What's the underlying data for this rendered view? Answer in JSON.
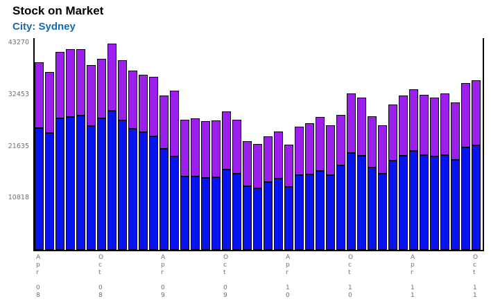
{
  "header": {
    "title": "Stock on Market",
    "subtitle": "City: Sydney"
  },
  "colors": {
    "title_text": "#000000",
    "subtitle_text": "#1569b5",
    "tick_text": "#707070",
    "axis_line": "#000000",
    "bar_blue": "#0814f0",
    "bar_purple": "#9d1fee",
    "background": "#ffffff"
  },
  "chart_data": {
    "type": "bar",
    "stacked": true,
    "title": "Stock on Market",
    "subtitle": "City: Sydney",
    "xlabel": "",
    "ylabel": "",
    "ylim": [
      0,
      43270
    ],
    "grid": false,
    "legend": "none",
    "yticks": [
      {
        "label": "43270",
        "value": 43270
      },
      {
        "label": "32453",
        "value": 32452.5
      },
      {
        "label": "21635",
        "value": 21635
      },
      {
        "label": "10818",
        "value": 10817.5
      }
    ],
    "x_tick_step": 6,
    "x_tick_labels_visible": [
      "Apr 08",
      "Oct 08",
      "Apr 09",
      "Oct 09",
      "Apr 10",
      "Oct 10",
      "Apr 11",
      "Oct 11"
    ],
    "categories": [
      "Apr 08",
      "May 08",
      "Jun 08",
      "Jul 08",
      "Aug 08",
      "Sep 08",
      "Oct 08",
      "Nov 08",
      "Dec 08",
      "Jan 09",
      "Feb 09",
      "Mar 09",
      "Apr 09",
      "May 09",
      "Jun 09",
      "Jul 09",
      "Aug 09",
      "Sep 09",
      "Oct 09",
      "Nov 09",
      "Dec 09",
      "Jan 10",
      "Feb 10",
      "Mar 10",
      "Apr 10",
      "May 10",
      "Jun 10",
      "Jul 10",
      "Aug 10",
      "Sep 10",
      "Oct 10",
      "Nov 10",
      "Dec 10",
      "Jan 11",
      "Feb 11",
      "Mar 11",
      "Apr 11",
      "May 11",
      "Jun 11",
      "Jul 11",
      "Aug 11",
      "Sep 11",
      "Oct 11"
    ],
    "series": [
      {
        "name": "blue-lower-segment",
        "color": "#0814f0",
        "values": [
          25450,
          24450,
          27450,
          27750,
          28050,
          25900,
          27450,
          29050,
          27000,
          25300,
          24600,
          23700,
          21150,
          19550,
          15400,
          15400,
          15100,
          15250,
          16800,
          15950,
          13350,
          12950,
          14250,
          14950,
          13100,
          15650,
          15800,
          16550,
          15650,
          17700,
          20250,
          19700,
          17250,
          15950,
          18700,
          19700,
          20700,
          19850,
          19550,
          19850,
          18850,
          21400,
          21850
        ]
      },
      {
        "name": "purple-upper-segment",
        "color": "#9d1fee",
        "values": [
          13800,
          12800,
          13950,
          14250,
          13950,
          12750,
          12500,
          14050,
          12650,
          12100,
          12050,
          12400,
          11200,
          13800,
          11900,
          12200,
          11800,
          11900,
          12100,
          11350,
          9350,
          9200,
          9600,
          9900,
          8900,
          10200,
          10650,
          11350,
          10350,
          10600,
          12400,
          12200,
          10650,
          10200,
          11650,
          12650,
          12950,
          12650,
          12350,
          12950,
          12050,
          13400,
          13650
        ]
      }
    ]
  }
}
